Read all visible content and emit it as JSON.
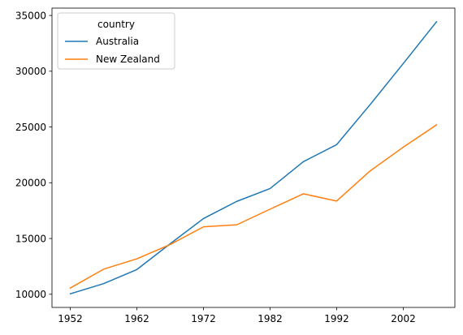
{
  "chart_data": {
    "type": "line",
    "title": "",
    "xlabel": "",
    "ylabel": "",
    "x": [
      1952,
      1957,
      1962,
      1967,
      1972,
      1977,
      1982,
      1987,
      1992,
      1997,
      2002,
      2007
    ],
    "series": [
      {
        "name": "Australia",
        "color": "#1f77b4",
        "values": [
          10040,
          10950,
          12220,
          14530,
          16790,
          18330,
          19480,
          21890,
          23420,
          26990,
          30690,
          34440
        ]
      },
      {
        "name": "New Zealand",
        "color": "#ff7f0e",
        "values": [
          10560,
          12250,
          13180,
          14460,
          16050,
          16230,
          17630,
          19010,
          18360,
          21050,
          23190,
          25190
        ]
      }
    ],
    "xticks": [
      "1952",
      "1962",
      "1972",
      "1982",
      "1992",
      "2002"
    ],
    "yticks": [
      "10000",
      "15000",
      "20000",
      "25000",
      "30000",
      "35000"
    ],
    "xlim": [
      1949.25,
      2009.75
    ],
    "ylim": [
      8820,
      35660
    ],
    "grid": false,
    "legend": {
      "title": "country",
      "placement": "upper-left"
    }
  }
}
